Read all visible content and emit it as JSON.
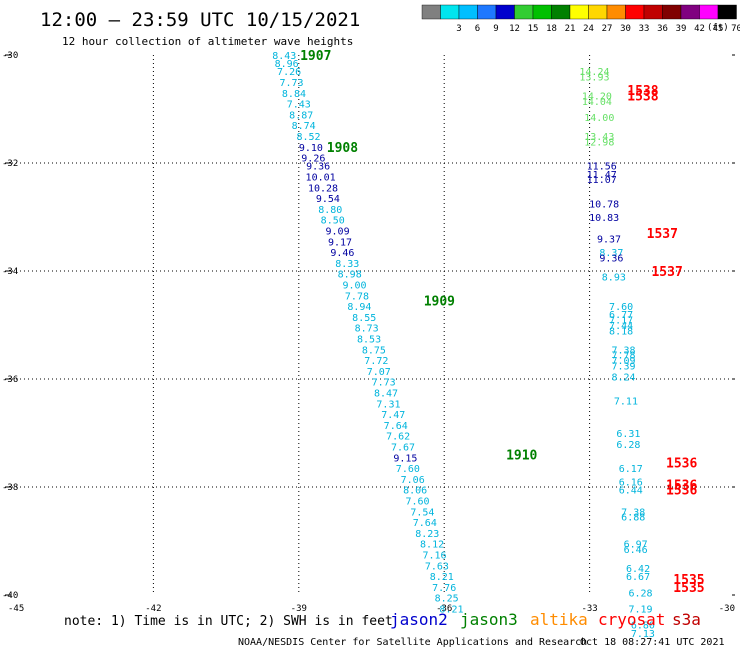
{
  "header": {
    "title": "12:00 – 23:59 UTC 10/15/2021",
    "subtitle": "12 hour collection of altimeter wave heights"
  },
  "legend": {
    "unit": "(ft)",
    "bins": [
      {
        "label": "",
        "color": "#808080"
      },
      {
        "label": "3",
        "color": "#00e5ee"
      },
      {
        "label": "6",
        "color": "#00bfff"
      },
      {
        "label": "9",
        "color": "#1e78ff"
      },
      {
        "label": "12",
        "color": "#0000cd"
      },
      {
        "label": "15",
        "color": "#32cd32"
      },
      {
        "label": "18",
        "color": "#00c000"
      },
      {
        "label": "21",
        "color": "#008000"
      },
      {
        "label": "24",
        "color": "#ffff00"
      },
      {
        "label": "27",
        "color": "#ffd700"
      },
      {
        "label": "30",
        "color": "#ff8c00"
      },
      {
        "label": "33",
        "color": "#ff0000"
      },
      {
        "label": "36",
        "color": "#c00000"
      },
      {
        "label": "39",
        "color": "#800000"
      },
      {
        "label": "42",
        "color": "#800080"
      },
      {
        "label": "45",
        "color": "#ff00ff"
      },
      {
        "label": "70",
        "color": "#000000"
      }
    ]
  },
  "footer": {
    "note": "note: 1) Time is in UTC; 2) SWH is in feet",
    "credit": "NOAA/NESDIS Center for Satellite Applications and Research",
    "timestamp": "Oct 18 08:27:41 UTC 2021"
  },
  "satellites": [
    {
      "name": "jason2",
      "color": "#0000cd"
    },
    {
      "name": "jason3",
      "color": "#008000"
    },
    {
      "name": "altika",
      "color": "#ff8c00"
    },
    {
      "name": "cryosat",
      "color": "#ff0000"
    },
    {
      "name": "s3a",
      "color": "#c00000"
    }
  ],
  "chart_data": {
    "type": "scatter",
    "xlim": [
      -45,
      -30
    ],
    "ylim": [
      -40,
      -30
    ],
    "xticks": [
      "-45",
      "-42",
      "-39",
      "-36",
      "-33",
      "-30"
    ],
    "yticks": [
      "-30",
      "-32",
      "-34",
      "-36",
      "-38",
      "-40"
    ],
    "grid": true,
    "colors": {
      "cyan": "#00b4dc",
      "navy": "#0000a0",
      "green": "#008000",
      "lightgreen": "#66e066",
      "red": "#ff0000"
    },
    "time_labels": [
      {
        "text": "1907",
        "lon": -38.65,
        "lat": -30.0,
        "color": "green"
      },
      {
        "text": "1908",
        "lon": -38.1,
        "lat": -31.7,
        "color": "green"
      },
      {
        "text": "1909",
        "lon": -36.1,
        "lat": -34.55,
        "color": "green"
      },
      {
        "text": "1910",
        "lon": -34.4,
        "lat": -37.4,
        "color": "green"
      },
      {
        "text": "1538",
        "lon": -31.9,
        "lat": -30.65,
        "color": "red"
      },
      {
        "text": "1538",
        "lon": -31.9,
        "lat": -30.75,
        "color": "red"
      },
      {
        "text": "1537",
        "lon": -31.5,
        "lat": -33.3,
        "color": "red"
      },
      {
        "text": "1537",
        "lon": -31.4,
        "lat": -34.0,
        "color": "red"
      },
      {
        "text": "1536",
        "lon": -31.1,
        "lat": -37.55,
        "color": "red"
      },
      {
        "text": "1536",
        "lon": -31.1,
        "lat": -37.95,
        "color": "red"
      },
      {
        "text": "1536",
        "lon": -31.1,
        "lat": -38.05,
        "color": "red"
      },
      {
        "text": "1535",
        "lon": -30.95,
        "lat": -39.7,
        "color": "red"
      },
      {
        "text": "1535",
        "lon": -30.95,
        "lat": -39.85,
        "color": "red"
      }
    ],
    "points": [
      {
        "lon": -39.3,
        "lat": -30.0,
        "v": "8.43",
        "c": "cyan"
      },
      {
        "lon": -39.25,
        "lat": -30.15,
        "v": "8.96",
        "c": "cyan"
      },
      {
        "lon": -39.2,
        "lat": -30.3,
        "v": "7.26",
        "c": "cyan"
      },
      {
        "lon": -39.15,
        "lat": -30.5,
        "v": "7.73",
        "c": "cyan"
      },
      {
        "lon": -39.1,
        "lat": -30.7,
        "v": "8.84",
        "c": "cyan"
      },
      {
        "lon": -39.0,
        "lat": -30.9,
        "v": "7.43",
        "c": "cyan"
      },
      {
        "lon": -38.95,
        "lat": -31.1,
        "v": "8.87",
        "c": "cyan"
      },
      {
        "lon": -38.9,
        "lat": -31.3,
        "v": "8.74",
        "c": "cyan"
      },
      {
        "lon": -38.8,
        "lat": -31.5,
        "v": "8.52",
        "c": "cyan"
      },
      {
        "lon": -38.75,
        "lat": -31.7,
        "v": "9.10",
        "c": "navy"
      },
      {
        "lon": -38.7,
        "lat": -31.9,
        "v": "9.26",
        "c": "navy"
      },
      {
        "lon": -38.6,
        "lat": -32.05,
        "v": "9.36",
        "c": "navy"
      },
      {
        "lon": -38.55,
        "lat": -32.25,
        "v": "10.01",
        "c": "navy"
      },
      {
        "lon": -38.5,
        "lat": -32.45,
        "v": "10.28",
        "c": "navy"
      },
      {
        "lon": -38.4,
        "lat": -32.65,
        "v": "9.54",
        "c": "navy"
      },
      {
        "lon": -38.35,
        "lat": -32.85,
        "v": "8.80",
        "c": "cyan"
      },
      {
        "lon": -38.3,
        "lat": -33.05,
        "v": "8.50",
        "c": "cyan"
      },
      {
        "lon": -38.2,
        "lat": -33.25,
        "v": "9.09",
        "c": "navy"
      },
      {
        "lon": -38.15,
        "lat": -33.45,
        "v": "9.17",
        "c": "navy"
      },
      {
        "lon": -38.1,
        "lat": -33.65,
        "v": "9.46",
        "c": "navy"
      },
      {
        "lon": -38.0,
        "lat": -33.85,
        "v": "8.33",
        "c": "cyan"
      },
      {
        "lon": -37.95,
        "lat": -34.05,
        "v": "8.98",
        "c": "cyan"
      },
      {
        "lon": -37.85,
        "lat": -34.25,
        "v": "9.00",
        "c": "cyan"
      },
      {
        "lon": -37.8,
        "lat": -34.45,
        "v": "7.78",
        "c": "cyan"
      },
      {
        "lon": -37.75,
        "lat": -34.65,
        "v": "8.94",
        "c": "cyan"
      },
      {
        "lon": -37.65,
        "lat": -34.85,
        "v": "8.55",
        "c": "cyan"
      },
      {
        "lon": -37.6,
        "lat": -35.05,
        "v": "8.73",
        "c": "cyan"
      },
      {
        "lon": -37.55,
        "lat": -35.25,
        "v": "8.53",
        "c": "cyan"
      },
      {
        "lon": -37.45,
        "lat": -35.45,
        "v": "8.75",
        "c": "cyan"
      },
      {
        "lon": -37.4,
        "lat": -35.65,
        "v": "7.72",
        "c": "cyan"
      },
      {
        "lon": -37.35,
        "lat": -35.85,
        "v": "7.07",
        "c": "cyan"
      },
      {
        "lon": -37.25,
        "lat": -36.05,
        "v": "7.73",
        "c": "cyan"
      },
      {
        "lon": -37.2,
        "lat": -36.25,
        "v": "8.47",
        "c": "cyan"
      },
      {
        "lon": -37.15,
        "lat": -36.45,
        "v": "7.31",
        "c": "cyan"
      },
      {
        "lon": -37.05,
        "lat": -36.65,
        "v": "7.47",
        "c": "cyan"
      },
      {
        "lon": -37.0,
        "lat": -36.85,
        "v": "7.64",
        "c": "cyan"
      },
      {
        "lon": -36.95,
        "lat": -37.05,
        "v": "7.62",
        "c": "cyan"
      },
      {
        "lon": -36.85,
        "lat": -37.25,
        "v": "7.67",
        "c": "cyan"
      },
      {
        "lon": -36.8,
        "lat": -37.45,
        "v": "9.15",
        "c": "navy"
      },
      {
        "lon": -36.75,
        "lat": -37.65,
        "v": "7.60",
        "c": "cyan"
      },
      {
        "lon": -36.65,
        "lat": -37.85,
        "v": "7.06",
        "c": "cyan"
      },
      {
        "lon": -36.6,
        "lat": -38.05,
        "v": "8.06",
        "c": "cyan"
      },
      {
        "lon": -36.55,
        "lat": -38.25,
        "v": "7.60",
        "c": "cyan"
      },
      {
        "lon": -36.45,
        "lat": -38.45,
        "v": "7.54",
        "c": "cyan"
      },
      {
        "lon": -36.4,
        "lat": -38.65,
        "v": "7.64",
        "c": "cyan"
      },
      {
        "lon": -36.35,
        "lat": -38.85,
        "v": "8.23",
        "c": "cyan"
      },
      {
        "lon": -36.25,
        "lat": -39.05,
        "v": "8.12",
        "c": "cyan"
      },
      {
        "lon": -36.2,
        "lat": -39.25,
        "v": "7.16",
        "c": "cyan"
      },
      {
        "lon": -36.15,
        "lat": -39.45,
        "v": "7.63",
        "c": "cyan"
      },
      {
        "lon": -36.05,
        "lat": -39.65,
        "v": "8.21",
        "c": "cyan"
      },
      {
        "lon": -36.0,
        "lat": -39.85,
        "v": "7.76",
        "c": "cyan"
      },
      {
        "lon": -35.95,
        "lat": -40.05,
        "v": "8.25",
        "c": "cyan"
      },
      {
        "lon": -35.85,
        "lat": -40.25,
        "v": "8.21",
        "c": "cyan"
      },
      {
        "lon": -32.9,
        "lat": -30.3,
        "v": "14.24",
        "c": "lightgreen"
      },
      {
        "lon": -32.9,
        "lat": -30.4,
        "v": "13.93",
        "c": "lightgreen"
      },
      {
        "lon": -32.85,
        "lat": -30.75,
        "v": "14.20",
        "c": "lightgreen"
      },
      {
        "lon": -32.85,
        "lat": -30.85,
        "v": "14.04",
        "c": "lightgreen"
      },
      {
        "lon": -32.8,
        "lat": -31.15,
        "v": "14.00",
        "c": "lightgreen"
      },
      {
        "lon": -32.8,
        "lat": -31.5,
        "v": "13.43",
        "c": "lightgreen"
      },
      {
        "lon": -32.8,
        "lat": -31.6,
        "v": "12.98",
        "c": "lightgreen"
      },
      {
        "lon": -32.75,
        "lat": -32.05,
        "v": "11.56",
        "c": "navy"
      },
      {
        "lon": -32.75,
        "lat": -32.2,
        "v": "11.47",
        "c": "navy"
      },
      {
        "lon": -32.75,
        "lat": -32.3,
        "v": "11.07",
        "c": "navy"
      },
      {
        "lon": -32.7,
        "lat": -32.75,
        "v": "10.78",
        "c": "navy"
      },
      {
        "lon": -32.7,
        "lat": -33.0,
        "v": "10.83",
        "c": "navy"
      },
      {
        "lon": -32.6,
        "lat": -33.4,
        "v": "9.37",
        "c": "navy"
      },
      {
        "lon": -32.55,
        "lat": -33.65,
        "v": "8.37",
        "c": "cyan"
      },
      {
        "lon": -32.55,
        "lat": -33.75,
        "v": "9.36",
        "c": "navy"
      },
      {
        "lon": -32.5,
        "lat": -34.1,
        "v": "8.93",
        "c": "cyan"
      },
      {
        "lon": -32.35,
        "lat": -34.65,
        "v": "7.60",
        "c": "cyan"
      },
      {
        "lon": -32.35,
        "lat": -34.8,
        "v": "6.77",
        "c": "cyan"
      },
      {
        "lon": -32.35,
        "lat": -34.9,
        "v": "7.17",
        "c": "cyan"
      },
      {
        "lon": -32.35,
        "lat": -35.0,
        "v": "7.44",
        "c": "cyan"
      },
      {
        "lon": -32.35,
        "lat": -35.1,
        "v": "8.18",
        "c": "cyan"
      },
      {
        "lon": -32.3,
        "lat": -35.45,
        "v": "7.38",
        "c": "cyan"
      },
      {
        "lon": -32.3,
        "lat": -35.55,
        "v": "7.78",
        "c": "cyan"
      },
      {
        "lon": -32.3,
        "lat": -35.65,
        "v": "7.09",
        "c": "cyan"
      },
      {
        "lon": -32.3,
        "lat": -35.75,
        "v": "7.39",
        "c": "cyan"
      },
      {
        "lon": -32.3,
        "lat": -35.95,
        "v": "8.24",
        "c": "cyan"
      },
      {
        "lon": -32.25,
        "lat": -36.4,
        "v": "7.11",
        "c": "cyan"
      },
      {
        "lon": -32.2,
        "lat": -37.0,
        "v": "6.31",
        "c": "cyan"
      },
      {
        "lon": -32.2,
        "lat": -37.2,
        "v": "6.28",
        "c": "cyan"
      },
      {
        "lon": -32.15,
        "lat": -37.65,
        "v": "6.17",
        "c": "cyan"
      },
      {
        "lon": -32.15,
        "lat": -37.9,
        "v": "6.16",
        "c": "cyan"
      },
      {
        "lon": -32.15,
        "lat": -38.05,
        "v": "6.44",
        "c": "cyan"
      },
      {
        "lon": -32.1,
        "lat": -38.45,
        "v": "7.38",
        "c": "cyan"
      },
      {
        "lon": -32.1,
        "lat": -38.55,
        "v": "6.88",
        "c": "cyan"
      },
      {
        "lon": -32.05,
        "lat": -39.05,
        "v": "6.97",
        "c": "cyan"
      },
      {
        "lon": -32.05,
        "lat": -39.15,
        "v": "6.46",
        "c": "cyan"
      },
      {
        "lon": -32.0,
        "lat": -39.5,
        "v": "6.42",
        "c": "cyan"
      },
      {
        "lon": -32.0,
        "lat": -39.65,
        "v": "6.67",
        "c": "cyan"
      },
      {
        "lon": -31.95,
        "lat": -39.95,
        "v": "6.28",
        "c": "cyan"
      },
      {
        "lon": -31.95,
        "lat": -40.25,
        "v": "7.19",
        "c": "cyan"
      },
      {
        "lon": -31.9,
        "lat": -40.55,
        "v": "6.80",
        "c": "cyan"
      },
      {
        "lon": -31.9,
        "lat": -40.7,
        "v": "7.13",
        "c": "cyan"
      }
    ]
  }
}
